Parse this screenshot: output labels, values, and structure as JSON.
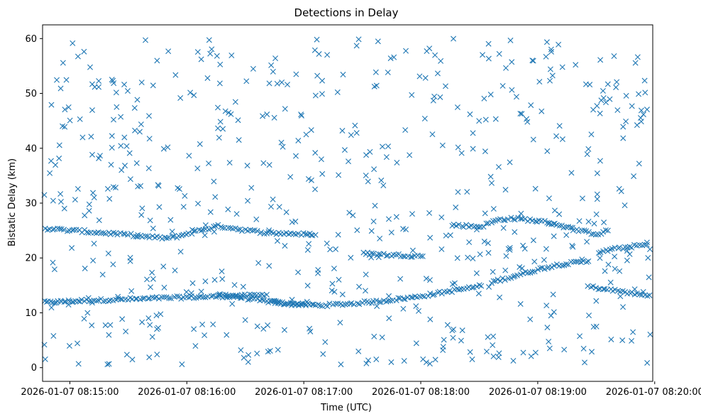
{
  "chart_data": {
    "type": "scatter",
    "title": "Detections in Delay",
    "xlabel": "Time (UTC)",
    "ylabel": "Bistatic Delay (km)",
    "marker": "x",
    "color": "#1f77b4",
    "xlim": [
      "2026-01-07 08:14:46",
      "2026-01-07 08:19:59"
    ],
    "ylim": [
      -2.5,
      62.5
    ],
    "x_ticks": [
      "2026-01-07 08:15:00",
      "2026-01-07 08:16:00",
      "2026-01-07 08:17:00",
      "2026-01-07 08:18:00",
      "2026-01-07 08:19:00",
      "2026-01-07 08:20:00"
    ],
    "y_ticks": [
      0,
      10,
      20,
      30,
      40,
      50,
      60
    ],
    "track_segments": [
      {
        "name": "track-low-a",
        "t": [
          0,
          4,
          8,
          12,
          16,
          20,
          25,
          30,
          35,
          40,
          45,
          50,
          55,
          60,
          65,
          70,
          75,
          80,
          85,
          90,
          95,
          100,
          105,
          110,
          115
        ],
        "delay": [
          11.9,
          11.9,
          12.0,
          12.1,
          12.1,
          12.2,
          12.3,
          12.3,
          12.4,
          12.4,
          12.5,
          12.5,
          12.6,
          12.7,
          12.7,
          12.8,
          12.8,
          12.9,
          12.9,
          13.0,
          13.0,
          13.1,
          13.1,
          13.2,
          13.3
        ]
      },
      {
        "name": "track-low-b",
        "t": [
          90,
          95,
          100,
          105,
          110,
          115,
          118,
          120,
          122,
          125,
          128,
          130,
          133,
          136,
          140,
          145,
          150,
          155,
          160,
          165,
          170,
          175,
          180,
          185,
          190,
          195,
          200,
          205,
          210,
          215,
          220,
          225
        ],
        "delay": [
          13.5,
          13.2,
          12.9,
          12.6,
          12.3,
          12.1,
          12.0,
          11.9,
          11.8,
          11.7,
          11.6,
          11.6,
          11.5,
          11.5,
          11.4,
          11.4,
          11.5,
          11.6,
          11.7,
          11.9,
          12.0,
          12.2,
          12.4,
          12.6,
          12.8,
          13.1,
          13.4,
          13.7,
          14.0,
          14.3,
          14.6,
          14.9
        ]
      },
      {
        "name": "track-low-c",
        "t": [
          230,
          235,
          240,
          245,
          250,
          255,
          260,
          265,
          270,
          275,
          280
        ],
        "delay": [
          15.6,
          16.0,
          16.5,
          17.0,
          17.5,
          18.0,
          18.4,
          18.8,
          19.0,
          19.2,
          19.4
        ]
      },
      {
        "name": "track-mid-a",
        "t": [
          0,
          5,
          10,
          15,
          20,
          25,
          30,
          35,
          40,
          45,
          50,
          55,
          60,
          65,
          70,
          75,
          80,
          85,
          90,
          95,
          100,
          105,
          110,
          115,
          120,
          125,
          130,
          135,
          140
        ],
        "delay": [
          25.4,
          25.3,
          25.1,
          25.0,
          24.9,
          24.7,
          24.6,
          24.5,
          24.3,
          24.2,
          24.0,
          23.8,
          23.7,
          23.6,
          24.0,
          24.5,
          25.0,
          25.4,
          25.8,
          25.6,
          25.3,
          25.0,
          24.8,
          24.6,
          24.5,
          24.5,
          24.4,
          24.3,
          24.2
        ]
      },
      {
        "name": "track-mid-b",
        "t": [
          165,
          170,
          175,
          180,
          185,
          190,
          195
        ],
        "delay": [
          20.8,
          20.7,
          20.6,
          20.5,
          20.5,
          20.4,
          20.3
        ]
      },
      {
        "name": "track-mid-c",
        "t": [
          210,
          215,
          220,
          225,
          230,
          235,
          240,
          245,
          250,
          255,
          260,
          265,
          270,
          275,
          280,
          285,
          290
        ],
        "delay": [
          26.0,
          25.9,
          25.8,
          25.7,
          26.5,
          27.0,
          27.2,
          27.1,
          26.9,
          26.7,
          26.4,
          26.0,
          25.5,
          25.0,
          24.6,
          24.4,
          25.0
        ]
      },
      {
        "name": "track-mid-d",
        "t": [
          285,
          290,
          295,
          300,
          305,
          310
        ],
        "delay": [
          21.0,
          21.4,
          21.7,
          22.0,
          22.2,
          22.4
        ]
      },
      {
        "name": "track-low-d",
        "t": [
          280,
          285,
          290,
          295,
          300,
          305,
          310,
          315
        ],
        "delay": [
          14.8,
          14.5,
          14.2,
          14.0,
          13.7,
          13.4,
          13.1,
          12.9
        ]
      }
    ],
    "clutter": {
      "count": 620,
      "t_range": [
        0,
        315
      ],
      "delay_range": [
        0.5,
        60
      ]
    }
  }
}
